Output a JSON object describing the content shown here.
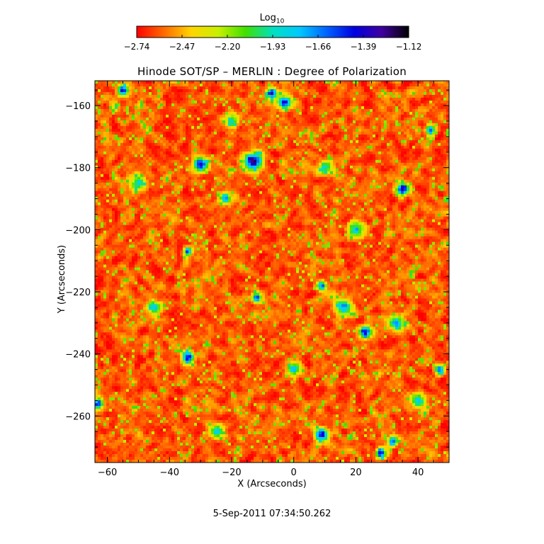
{
  "chart_data": {
    "type": "heatmap",
    "title": "Hinode SOT/SP – MERLIN : Degree of Polarization",
    "xlabel": "X (Arcseconds)",
    "ylabel": "Y (Arcseconds)",
    "xlim": [
      -64,
      50
    ],
    "ylim": [
      -275,
      -152
    ],
    "x_ticks": [
      -60,
      -40,
      -20,
      0,
      20,
      40
    ],
    "y_ticks": [
      -160,
      -180,
      -200,
      -220,
      -240,
      -260
    ],
    "x_tick_labels": [
      "−60",
      "−40",
      "−20",
      "0",
      "20",
      "40"
    ],
    "y_tick_labels": [
      "−160",
      "−180",
      "−200",
      "−220",
      "−240",
      "−260"
    ],
    "colorbar": {
      "label_main": "Log",
      "label_sub": "10",
      "range": [
        -2.74,
        -1.12
      ],
      "ticks": [
        -2.74,
        -2.47,
        -2.2,
        -1.93,
        -1.66,
        -1.39,
        -1.12
      ],
      "tick_labels": [
        "−2.74",
        "−2.47",
        "−2.20",
        "−1.93",
        "−1.66",
        "−1.39",
        "−1.12"
      ],
      "colormap": [
        "#ff0000",
        "#ff6a00",
        "#ffd400",
        "#c8f000",
        "#40e000",
        "#00e0c0",
        "#00c8ff",
        "#0060ff",
        "#0000e0",
        "#4000a0",
        "#000000"
      ]
    },
    "grid": false,
    "background_level": -2.6,
    "noise_amplitude": 0.3,
    "features": [
      {
        "x": -13,
        "y": -178,
        "peak": -1.25,
        "r": 2.6
      },
      {
        "x": -30,
        "y": -179,
        "peak": -1.3,
        "r": 2.0
      },
      {
        "x": -3,
        "y": -159,
        "peak": -1.3,
        "r": 1.8
      },
      {
        "x": -7,
        "y": -156,
        "peak": -1.4,
        "r": 1.5
      },
      {
        "x": -55,
        "y": -155,
        "peak": -1.45,
        "r": 1.6
      },
      {
        "x": 35,
        "y": -187,
        "peak": -1.35,
        "r": 1.8
      },
      {
        "x": -22,
        "y": -190,
        "peak": -1.55,
        "r": 1.5
      },
      {
        "x": -34,
        "y": -241,
        "peak": -1.35,
        "r": 1.8
      },
      {
        "x": 23,
        "y": -233,
        "peak": -1.35,
        "r": 1.8
      },
      {
        "x": 9,
        "y": -266,
        "peak": -1.4,
        "r": 2.0
      },
      {
        "x": -63,
        "y": -256,
        "peak": -1.4,
        "r": 1.5
      },
      {
        "x": 28,
        "y": -272,
        "peak": -1.45,
        "r": 1.5
      },
      {
        "x": 32,
        "y": -268,
        "peak": -1.5,
        "r": 1.4
      },
      {
        "x": 47,
        "y": -245,
        "peak": -1.5,
        "r": 1.4
      },
      {
        "x": 44,
        "y": -168,
        "peak": -1.5,
        "r": 1.4
      },
      {
        "x": -12,
        "y": -222,
        "peak": -1.6,
        "r": 1.6
      },
      {
        "x": 9,
        "y": -218,
        "peak": -1.55,
        "r": 1.3
      },
      {
        "x": -34,
        "y": -207,
        "peak": -1.55,
        "r": 1.3
      },
      {
        "x": 16,
        "y": -225,
        "peak": -1.7,
        "r": 2.5
      },
      {
        "x": 33,
        "y": -230,
        "peak": -1.7,
        "r": 2.2
      },
      {
        "x": 0,
        "y": -245,
        "peak": -1.75,
        "r": 2.0
      },
      {
        "x": -45,
        "y": -225,
        "peak": -1.75,
        "r": 2.0
      },
      {
        "x": 20,
        "y": -200,
        "peak": -1.8,
        "r": 2.4
      },
      {
        "x": -50,
        "y": -185,
        "peak": -1.8,
        "r": 2.2
      },
      {
        "x": -20,
        "y": -165,
        "peak": -1.85,
        "r": 2.0
      },
      {
        "x": 40,
        "y": -255,
        "peak": -1.8,
        "r": 2.2
      },
      {
        "x": -25,
        "y": -265,
        "peak": -1.8,
        "r": 2.0
      },
      {
        "x": 10,
        "y": -180,
        "peak": -1.85,
        "r": 2.0
      }
    ]
  },
  "footer": {
    "timestamp": "5-Sep-2011 07:34:50.262"
  }
}
